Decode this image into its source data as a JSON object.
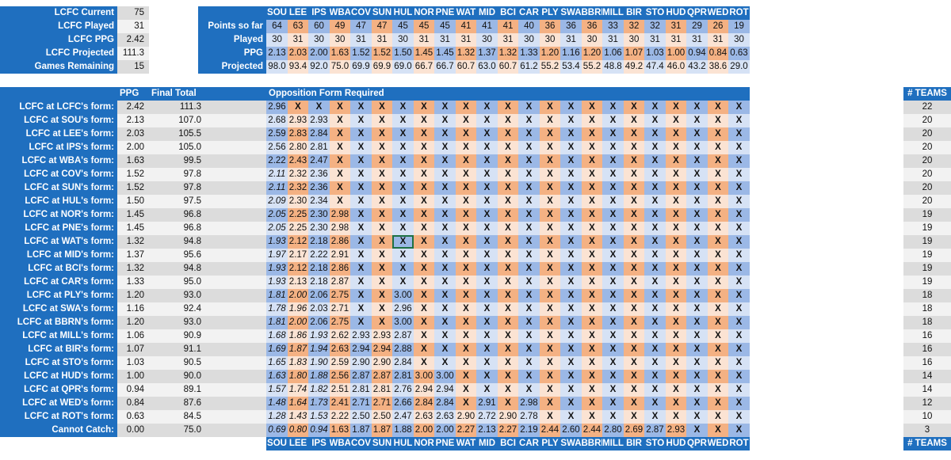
{
  "summary": [
    {
      "label": "LCFC Current",
      "value": "75"
    },
    {
      "label": "LCFC Played",
      "value": "31"
    },
    {
      "label": "LCFC PPG",
      "value": "2.42"
    },
    {
      "label": "LCFC Projected",
      "value": "111.3"
    },
    {
      "label": "Games Remaining",
      "value": "15"
    }
  ],
  "teams": [
    "SOU",
    "LEE",
    "IPS",
    "WBA",
    "COV",
    "SUN",
    "HUL",
    "NOR",
    "PNE",
    "WAT",
    "MID",
    "BCI",
    "CAR",
    "PLY",
    "SWA",
    "BBRN",
    "MILL",
    "BIR",
    "STO",
    "HUD",
    "QPR",
    "WED",
    "ROT"
  ],
  "stats": {
    "labels": [
      "Points so far",
      "Played",
      "PPG",
      "Projected"
    ],
    "rows": [
      [
        "64",
        "63",
        "60",
        "49",
        "47",
        "47",
        "45",
        "45",
        "45",
        "41",
        "41",
        "41",
        "40",
        "36",
        "36",
        "36",
        "33",
        "32",
        "32",
        "31",
        "29",
        "26",
        "19"
      ],
      [
        "30",
        "31",
        "30",
        "30",
        "31",
        "31",
        "30",
        "31",
        "31",
        "31",
        "30",
        "31",
        "30",
        "30",
        "31",
        "30",
        "31",
        "30",
        "31",
        "31",
        "31",
        "31",
        "30"
      ],
      [
        "2.13",
        "2.03",
        "2.00",
        "1.63",
        "1.52",
        "1.52",
        "1.50",
        "1.45",
        "1.45",
        "1.32",
        "1.37",
        "1.32",
        "1.33",
        "1.20",
        "1.16",
        "1.20",
        "1.06",
        "1.07",
        "1.03",
        "1.00",
        "0.94",
        "0.84",
        "0.63"
      ],
      [
        "98.0",
        "93.4",
        "92.0",
        "75.0",
        "69.9",
        "69.9",
        "69.0",
        "66.7",
        "66.7",
        "60.7",
        "63.0",
        "60.7",
        "61.2",
        "55.2",
        "53.4",
        "55.2",
        "48.8",
        "49.2",
        "47.4",
        "46.0",
        "43.2",
        "38.6",
        "29.0"
      ]
    ]
  },
  "table": {
    "ppg_header": "PPG",
    "final_header": "Final Total",
    "opp_header": "Opposition Form Required",
    "teams_header": "# TEAMS",
    "rows": [
      {
        "label": "LCFC at LCFC's form:",
        "ppg": "2.42",
        "final": "111.3",
        "cells": [
          "2.96",
          "X",
          "X",
          "X",
          "X",
          "X",
          "X",
          "X",
          "X",
          "X",
          "X",
          "X",
          "X",
          "X",
          "X",
          "X",
          "X",
          "X",
          "X",
          "X",
          "X",
          "X",
          "X"
        ],
        "teams": "22"
      },
      {
        "label": "LCFC at SOU's form:",
        "ppg": "2.13",
        "final": "107.0",
        "cells": [
          "2.68",
          "2.93",
          "2.93",
          "X",
          "X",
          "X",
          "X",
          "X",
          "X",
          "X",
          "X",
          "X",
          "X",
          "X",
          "X",
          "X",
          "X",
          "X",
          "X",
          "X",
          "X",
          "X",
          "X"
        ],
        "teams": "20"
      },
      {
        "label": "LCFC at LEE's form:",
        "ppg": "2.03",
        "final": "105.5",
        "cells": [
          "2.59",
          "2.83",
          "2.84",
          "X",
          "X",
          "X",
          "X",
          "X",
          "X",
          "X",
          "X",
          "X",
          "X",
          "X",
          "X",
          "X",
          "X",
          "X",
          "X",
          "X",
          "X",
          "X",
          "X"
        ],
        "teams": "20"
      },
      {
        "label": "LCFC at IPS's form:",
        "ppg": "2.00",
        "final": "105.0",
        "cells": [
          "2.56",
          "2.80",
          "2.81",
          "X",
          "X",
          "X",
          "X",
          "X",
          "X",
          "X",
          "X",
          "X",
          "X",
          "X",
          "X",
          "X",
          "X",
          "X",
          "X",
          "X",
          "X",
          "X",
          "X"
        ],
        "teams": "20"
      },
      {
        "label": "LCFC at WBA's form:",
        "ppg": "1.63",
        "final": "99.5",
        "cells": [
          "2.22",
          "2.43",
          "2.47",
          "X",
          "X",
          "X",
          "X",
          "X",
          "X",
          "X",
          "X",
          "X",
          "X",
          "X",
          "X",
          "X",
          "X",
          "X",
          "X",
          "X",
          "X",
          "X",
          "X"
        ],
        "teams": "20"
      },
      {
        "label": "LCFC at COV's form:",
        "ppg": "1.52",
        "final": "97.8",
        "cells": [
          "2.11",
          "2.32",
          "2.36",
          "X",
          "X",
          "X",
          "X",
          "X",
          "X",
          "X",
          "X",
          "X",
          "X",
          "X",
          "X",
          "X",
          "X",
          "X",
          "X",
          "X",
          "X",
          "X",
          "X"
        ],
        "teams": "20"
      },
      {
        "label": "LCFC at SUN's form:",
        "ppg": "1.52",
        "final": "97.8",
        "cells": [
          "2.11",
          "2.32",
          "2.36",
          "X",
          "X",
          "X",
          "X",
          "X",
          "X",
          "X",
          "X",
          "X",
          "X",
          "X",
          "X",
          "X",
          "X",
          "X",
          "X",
          "X",
          "X",
          "X",
          "X"
        ],
        "teams": "20"
      },
      {
        "label": "LCFC at HUL's form:",
        "ppg": "1.50",
        "final": "97.5",
        "cells": [
          "2.09",
          "2.30",
          "2.34",
          "X",
          "X",
          "X",
          "X",
          "X",
          "X",
          "X",
          "X",
          "X",
          "X",
          "X",
          "X",
          "X",
          "X",
          "X",
          "X",
          "X",
          "X",
          "X",
          "X"
        ],
        "teams": "20"
      },
      {
        "label": "LCFC at NOR's form:",
        "ppg": "1.45",
        "final": "96.8",
        "cells": [
          "2.05",
          "2.25",
          "2.30",
          "2.98",
          "X",
          "X",
          "X",
          "X",
          "X",
          "X",
          "X",
          "X",
          "X",
          "X",
          "X",
          "X",
          "X",
          "X",
          "X",
          "X",
          "X",
          "X",
          "X"
        ],
        "teams": "19"
      },
      {
        "label": "LCFC at PNE's form:",
        "ppg": "1.45",
        "final": "96.8",
        "cells": [
          "2.05",
          "2.25",
          "2.30",
          "2.98",
          "X",
          "X",
          "X",
          "X",
          "X",
          "X",
          "X",
          "X",
          "X",
          "X",
          "X",
          "X",
          "X",
          "X",
          "X",
          "X",
          "X",
          "X",
          "X"
        ],
        "teams": "19"
      },
      {
        "label": "LCFC at WAT's form:",
        "ppg": "1.32",
        "final": "94.8",
        "cells": [
          "1.93",
          "2.12",
          "2.18",
          "2.86",
          "X",
          "X",
          "X",
          "X",
          "X",
          "X",
          "X",
          "X",
          "X",
          "X",
          "X",
          "X",
          "X",
          "X",
          "X",
          "X",
          "X",
          "X",
          "X"
        ],
        "teams": "19"
      },
      {
        "label": "LCFC at MID's form:",
        "ppg": "1.37",
        "final": "95.6",
        "cells": [
          "1.97",
          "2.17",
          "2.22",
          "2.91",
          "X",
          "X",
          "X",
          "X",
          "X",
          "X",
          "X",
          "X",
          "X",
          "X",
          "X",
          "X",
          "X",
          "X",
          "X",
          "X",
          "X",
          "X",
          "X"
        ],
        "teams": "19"
      },
      {
        "label": "LCFC at BCI's form:",
        "ppg": "1.32",
        "final": "94.8",
        "cells": [
          "1.93",
          "2.12",
          "2.18",
          "2.86",
          "X",
          "X",
          "X",
          "X",
          "X",
          "X",
          "X",
          "X",
          "X",
          "X",
          "X",
          "X",
          "X",
          "X",
          "X",
          "X",
          "X",
          "X",
          "X"
        ],
        "teams": "19"
      },
      {
        "label": "LCFC at CAR's form:",
        "ppg": "1.33",
        "final": "95.0",
        "cells": [
          "1.93",
          "2.13",
          "2.18",
          "2.87",
          "X",
          "X",
          "X",
          "X",
          "X",
          "X",
          "X",
          "X",
          "X",
          "X",
          "X",
          "X",
          "X",
          "X",
          "X",
          "X",
          "X",
          "X",
          "X"
        ],
        "teams": "19"
      },
      {
        "label": "LCFC at PLY's form:",
        "ppg": "1.20",
        "final": "93.0",
        "cells": [
          "1.81",
          "2.00",
          "2.06",
          "2.75",
          "X",
          "X",
          "3.00",
          "X",
          "X",
          "X",
          "X",
          "X",
          "X",
          "X",
          "X",
          "X",
          "X",
          "X",
          "X",
          "X",
          "X",
          "X",
          "X"
        ],
        "teams": "18"
      },
      {
        "label": "LCFC at SWA's form:",
        "ppg": "1.16",
        "final": "92.4",
        "cells": [
          "1.78",
          "1.96",
          "2.03",
          "2.71",
          "X",
          "X",
          "2.96",
          "X",
          "X",
          "X",
          "X",
          "X",
          "X",
          "X",
          "X",
          "X",
          "X",
          "X",
          "X",
          "X",
          "X",
          "X",
          "X"
        ],
        "teams": "18"
      },
      {
        "label": "LCFC at BBRN's form:",
        "ppg": "1.20",
        "final": "93.0",
        "cells": [
          "1.81",
          "2.00",
          "2.06",
          "2.75",
          "X",
          "X",
          "3.00",
          "X",
          "X",
          "X",
          "X",
          "X",
          "X",
          "X",
          "X",
          "X",
          "X",
          "X",
          "X",
          "X",
          "X",
          "X",
          "X"
        ],
        "teams": "18"
      },
      {
        "label": "LCFC at MILL's form:",
        "ppg": "1.06",
        "final": "90.9",
        "cells": [
          "1.68",
          "1.86",
          "1.93",
          "2.62",
          "2.93",
          "2.93",
          "2.87",
          "X",
          "X",
          "X",
          "X",
          "X",
          "X",
          "X",
          "X",
          "X",
          "X",
          "X",
          "X",
          "X",
          "X",
          "X",
          "X"
        ],
        "teams": "16"
      },
      {
        "label": "LCFC at BIR's form:",
        "ppg": "1.07",
        "final": "91.1",
        "cells": [
          "1.69",
          "1.87",
          "1.94",
          "2.63",
          "2.94",
          "2.94",
          "2.88",
          "X",
          "X",
          "X",
          "X",
          "X",
          "X",
          "X",
          "X",
          "X",
          "X",
          "X",
          "X",
          "X",
          "X",
          "X",
          "X"
        ],
        "teams": "16"
      },
      {
        "label": "LCFC at STO's form:",
        "ppg": "1.03",
        "final": "90.5",
        "cells": [
          "1.65",
          "1.83",
          "1.90",
          "2.59",
          "2.90",
          "2.90",
          "2.84",
          "X",
          "X",
          "X",
          "X",
          "X",
          "X",
          "X",
          "X",
          "X",
          "X",
          "X",
          "X",
          "X",
          "X",
          "X",
          "X"
        ],
        "teams": "16"
      },
      {
        "label": "LCFC at HUD's form:",
        "ppg": "1.00",
        "final": "90.0",
        "cells": [
          "1.63",
          "1.80",
          "1.88",
          "2.56",
          "2.87",
          "2.87",
          "2.81",
          "3.00",
          "3.00",
          "X",
          "X",
          "X",
          "X",
          "X",
          "X",
          "X",
          "X",
          "X",
          "X",
          "X",
          "X",
          "X",
          "X"
        ],
        "teams": "14"
      },
      {
        "label": "LCFC at QPR's form:",
        "ppg": "0.94",
        "final": "89.1",
        "cells": [
          "1.57",
          "1.74",
          "1.82",
          "2.51",
          "2.81",
          "2.81",
          "2.76",
          "2.94",
          "2.94",
          "X",
          "X",
          "X",
          "X",
          "X",
          "X",
          "X",
          "X",
          "X",
          "X",
          "X",
          "X",
          "X",
          "X"
        ],
        "teams": "14"
      },
      {
        "label": "LCFC at WED's form:",
        "ppg": "0.84",
        "final": "87.6",
        "cells": [
          "1.48",
          "1.64",
          "1.73",
          "2.41",
          "2.71",
          "2.71",
          "2.66",
          "2.84",
          "2.84",
          "X",
          "2.91",
          "X",
          "2.98",
          "X",
          "X",
          "X",
          "X",
          "X",
          "X",
          "X",
          "X",
          "X",
          "X"
        ],
        "teams": "12"
      },
      {
        "label": "LCFC at ROT's form:",
        "ppg": "0.63",
        "final": "84.5",
        "cells": [
          "1.28",
          "1.43",
          "1.53",
          "2.22",
          "2.50",
          "2.50",
          "2.47",
          "2.63",
          "2.63",
          "2.90",
          "2.72",
          "2.90",
          "2.78",
          "X",
          "X",
          "X",
          "X",
          "X",
          "X",
          "X",
          "X",
          "X",
          "X"
        ],
        "teams": "10"
      },
      {
        "label": "Cannot Catch:",
        "ppg": "0.00",
        "final": "75.0",
        "cells": [
          "0.69",
          "0.80",
          "0.94",
          "1.63",
          "1.87",
          "1.87",
          "1.88",
          "2.00",
          "2.00",
          "2.27",
          "2.13",
          "2.27",
          "2.19",
          "2.44",
          "2.60",
          "2.44",
          "2.80",
          "2.69",
          "2.87",
          "2.93",
          "X",
          "X",
          "X"
        ],
        "teams": "3"
      }
    ]
  },
  "colors": {
    "blue_header": "#1f6fbf",
    "orange": "#f4b183",
    "orange_light": "#fbe3d3",
    "blue_cell": "#9bb8e6",
    "blue_light": "#d6e2f5",
    "selection": "#1e7145"
  }
}
